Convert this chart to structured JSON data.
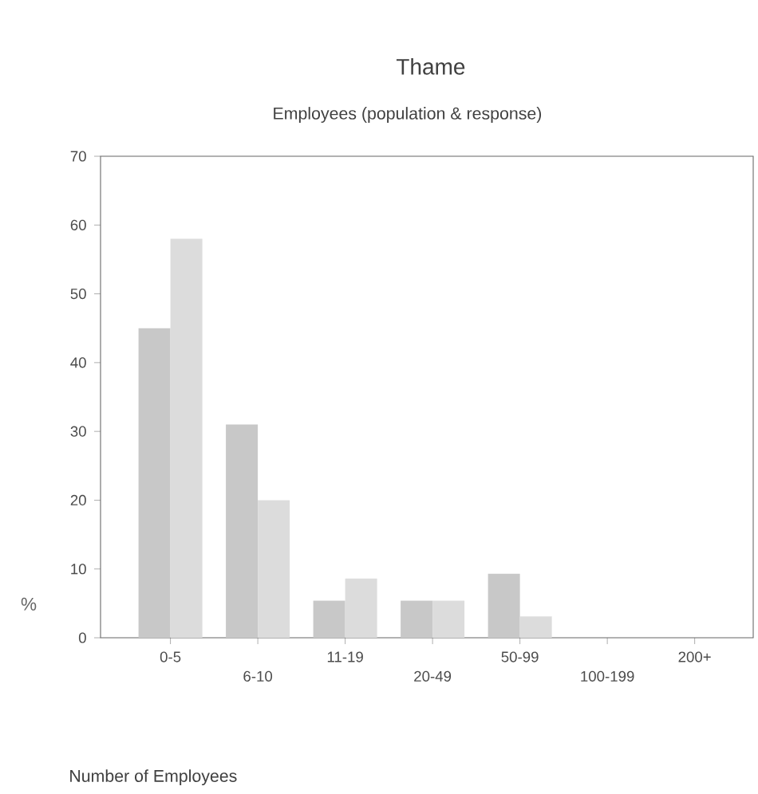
{
  "chart_data": {
    "type": "bar",
    "title": "Thame",
    "subtitle": "Employees (population & response)",
    "ylabel": "%",
    "annotations": [
      "Number of Employees"
    ],
    "categories": [
      "0-5",
      "6-10",
      "11-19",
      "20-49",
      "50-99",
      "100-199",
      "200+"
    ],
    "series": [
      {
        "color": "#c8c8c8",
        "values": [
          45,
          31,
          5.4,
          5.4,
          9.3,
          0,
          0
        ]
      },
      {
        "color": "#dcdcdc",
        "values": [
          58,
          20,
          8.6,
          5.4,
          3.1,
          0,
          0
        ]
      }
    ],
    "ylim": [
      0,
      70
    ],
    "yticks": [
      0,
      10,
      20,
      30,
      40,
      50,
      60,
      70
    ],
    "grid": false
  }
}
